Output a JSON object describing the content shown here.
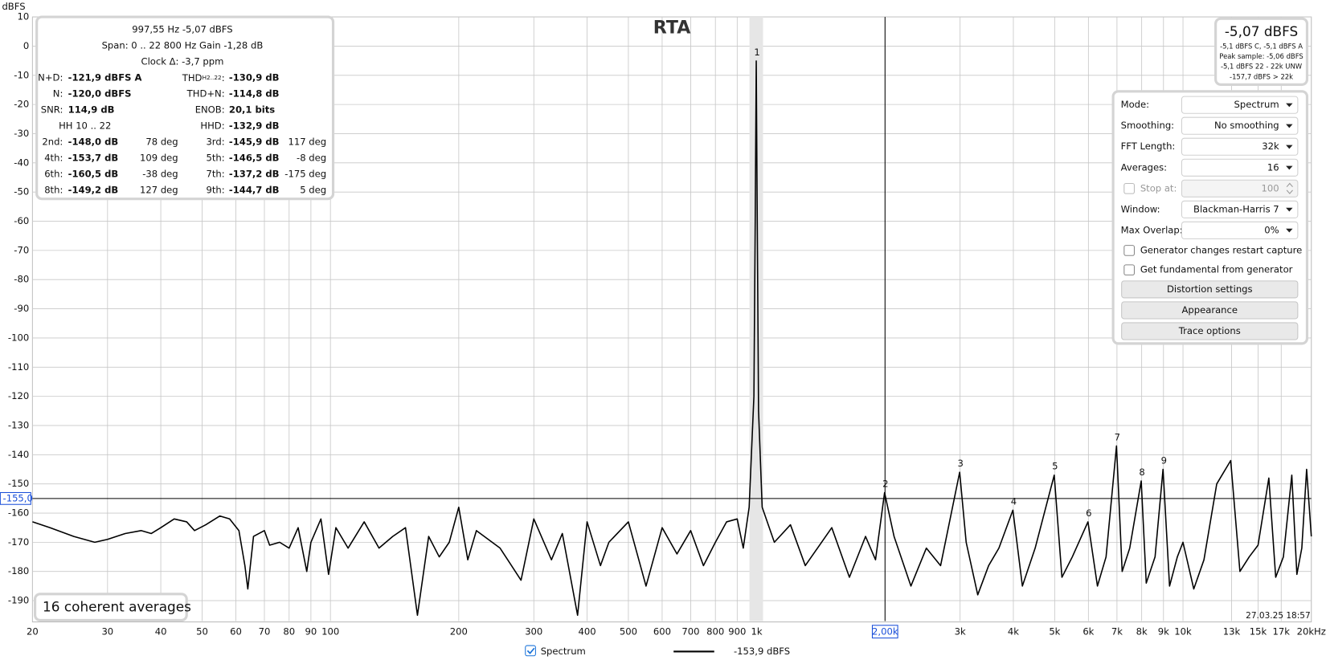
{
  "chart_data": {
    "type": "line",
    "title": "RTA",
    "y_label": "dBFS",
    "x_scale": "log",
    "grid": true,
    "xlim": [
      20,
      20000
    ],
    "ylim": [
      -197,
      10
    ],
    "yticks": [
      10,
      0,
      -10,
      -20,
      -30,
      -40,
      -50,
      -60,
      -70,
      -80,
      -90,
      -100,
      -110,
      -120,
      -130,
      -140,
      -150,
      -160,
      -170,
      -180,
      -190
    ],
    "xticks": [
      20,
      30,
      40,
      50,
      60,
      70,
      80,
      90,
      100,
      200,
      300,
      400,
      500,
      600,
      700,
      800,
      900,
      {
        "value": 1000,
        "label": "1k"
      },
      {
        "value": 3000,
        "label": "3k"
      },
      {
        "value": 4000,
        "label": "4k"
      },
      {
        "value": 5000,
        "label": "5k"
      },
      {
        "value": 6000,
        "label": "6k"
      },
      {
        "value": 7000,
        "label": "7k"
      },
      {
        "value": 8000,
        "label": "8k"
      },
      {
        "value": 9000,
        "label": "9k"
      },
      {
        "value": 10000,
        "label": "10k"
      },
      {
        "value": 13000,
        "label": "13k"
      },
      {
        "value": 15000,
        "label": "15k"
      },
      {
        "value": 17000,
        "label": "17k"
      },
      {
        "value": 20000,
        "label": "20kHz"
      }
    ],
    "x_cursor": {
      "value": 2000,
      "label": "2,00k"
    },
    "y_cursor": {
      "value": -155,
      "label": "-155,0"
    },
    "x": [
      20,
      22,
      25,
      28,
      30,
      33,
      36,
      38,
      40,
      43,
      46,
      48,
      51,
      55,
      58,
      61,
      63,
      64,
      66,
      70,
      72,
      76,
      80,
      84,
      88,
      90,
      95,
      99,
      103,
      110,
      120,
      130,
      140,
      150,
      160,
      170,
      180,
      190,
      200,
      210,
      220,
      250,
      280,
      300,
      330,
      350,
      380,
      400,
      430,
      450,
      500,
      550,
      600,
      650,
      700,
      750,
      800,
      850,
      900,
      930,
      960,
      985,
      992,
      997.55,
      1003,
      1010,
      1030,
      1100,
      1200,
      1300,
      1500,
      1650,
      1800,
      1900,
      1995,
      2100,
      2300,
      2500,
      2700,
      2993,
      3100,
      3300,
      3500,
      3700,
      3990,
      4200,
      4500,
      4988,
      5200,
      5500,
      5985,
      6300,
      6600,
      6983,
      7200,
      7500,
      7980,
      8200,
      8600,
      8978,
      9300,
      9700,
      10000,
      10600,
      11200,
      12000,
      12940,
      13600,
      14300,
      15000,
      15900,
      16500,
      17200,
      18000,
      18500,
      19000,
      19500,
      20000
    ],
    "series": [
      {
        "name": "Spectrum",
        "color": "#000000",
        "values": [
          -163,
          -165,
          -168,
          -170,
          -169,
          -167,
          -166,
          -167,
          -165,
          -162,
          -163,
          -166,
          -164,
          -161,
          -162,
          -166,
          -178,
          -186,
          -168,
          -166,
          -171,
          -170,
          -172,
          -165,
          -180,
          -170,
          -162,
          -181,
          -165,
          -172,
          -163,
          -172,
          -168,
          -165,
          -195,
          -168,
          -175,
          -170,
          -158,
          -176,
          -166,
          -172,
          -183,
          -162,
          -176,
          -167,
          -195,
          -163,
          -178,
          -170,
          -163,
          -185,
          -165,
          -174,
          -166,
          -178,
          -170,
          -163,
          -162,
          -172,
          -158,
          -120,
          -60,
          -5.07,
          -60,
          -125,
          -158,
          -170,
          -164,
          -178,
          -165,
          -182,
          -168,
          -176,
          -153,
          -168,
          -185,
          -172,
          -178,
          -146,
          -170,
          -188,
          -178,
          -172,
          -159,
          -185,
          -172,
          -147,
          -182,
          -175,
          -163,
          -185,
          -175,
          -137,
          -180,
          -172,
          -149,
          -184,
          -175,
          -145,
          -185,
          -175,
          -170,
          -186,
          -176,
          -150,
          -142,
          -180,
          -175,
          -171,
          -148,
          -182,
          -175,
          -147,
          -181,
          -172,
          -145,
          -168
        ]
      }
    ],
    "markers": [
      {
        "label": "1",
        "x": 997.55,
        "y": -5.07
      },
      {
        "label": "2",
        "x": 1995,
        "y": -153
      },
      {
        "label": "3",
        "x": 2993,
        "y": -146
      },
      {
        "label": "4",
        "x": 3990,
        "y": -159
      },
      {
        "label": "5",
        "x": 4988,
        "y": -147
      },
      {
        "label": "6",
        "x": 5985,
        "y": -163
      },
      {
        "label": "7",
        "x": 6983,
        "y": -137
      },
      {
        "label": "8",
        "x": 7980,
        "y": -149
      },
      {
        "label": "9",
        "x": 8978,
        "y": -145
      }
    ]
  },
  "ui": {
    "stats": {
      "header": [
        "997,55 Hz  -5,07 dBFS",
        "Span: 0 .. 22 800 Hz   Gain -1,28 dB",
        "Clock Δ: -3,7 ppm"
      ],
      "rows": [
        [
          "N+D:",
          "-121,9 dBFS A",
          [
            "THD",
            "H2..22",
            ":"
          ],
          "-130,9 dB"
        ],
        [
          "N:",
          "-120,0 dBFS",
          "THD+N:",
          "-114,8 dB"
        ],
        [
          "SNR:",
          "114,9 dB",
          "ENOB:",
          "20,1 bits"
        ],
        [
          "HH 10 .. 22",
          "HHD:",
          "-132,9 dB"
        ],
        [
          "2nd:",
          "-148,0 dB",
          "78 deg",
          "3rd:",
          "-145,9 dB",
          "117 deg"
        ],
        [
          "4th:",
          "-153,7 dB",
          "109 deg",
          "5th:",
          "-146,5 dB",
          "-8 deg"
        ],
        [
          "6th:",
          "-160,5 dB",
          "-38 deg",
          "7th:",
          "-137,2 dB",
          "-175 deg"
        ],
        [
          "8th:",
          "-149,2 dB",
          "127 deg",
          "9th:",
          "-144,7 dB",
          "5 deg"
        ]
      ]
    },
    "level": {
      "main": "-5,07 dBFS",
      "lines": [
        "-5,1 dBFS C, -5,1 dBFS A",
        "Peak sample: -5,06 dBFS",
        "-5,1 dBFS 22 - 22k UNW",
        "-157,7 dBFS > 22k"
      ]
    },
    "settings": {
      "rows": [
        {
          "label": "Mode:",
          "value": "Spectrum"
        },
        {
          "label": "Smoothing:",
          "value": "No smoothing"
        },
        {
          "label": "FFT Length:",
          "value": "32k"
        },
        {
          "label": "Averages:",
          "value": "16"
        },
        {
          "label": "Stop at:",
          "value": "100",
          "disabled": true
        },
        {
          "label": "Window:",
          "value": "Blackman-Harris 7"
        },
        {
          "label": "Max Overlap:",
          "value": "0%"
        }
      ],
      "checkboxes": [
        "Generator changes restart capture",
        "Get fundamental from generator"
      ],
      "buttons": [
        "Distortion settings",
        "Appearance",
        "Trace options"
      ]
    },
    "averages_note": "16 coherent averages",
    "legend_readout": "-153,9 dBFS",
    "timestamp": "27.03.25 18:57"
  }
}
